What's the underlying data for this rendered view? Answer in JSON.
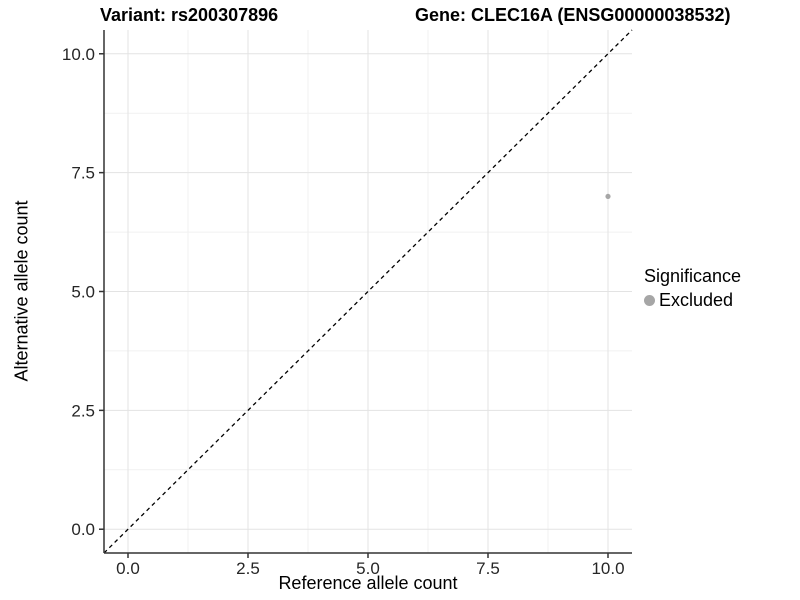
{
  "figure": {
    "title_left": "Variant: rs200307896",
    "title_right": "Gene: CLEC16A (ENSG00000038532)"
  },
  "chart_data": {
    "type": "scatter",
    "title": "Variant: rs200307896   Gene: CLEC16A (ENSG00000038532)",
    "xlabel": "Reference allele count",
    "ylabel": "Alternative allele count",
    "xlim": [
      -0.5,
      10.5
    ],
    "ylim": [
      -0.5,
      10.5
    ],
    "x_ticks": [
      0,
      2.5,
      5,
      7.5,
      10
    ],
    "y_ticks": [
      0,
      2.5,
      5,
      7.5,
      10
    ],
    "x_tick_labels": [
      "0.0",
      "2.5",
      "5.0",
      "7.5",
      "10.0"
    ],
    "y_tick_labels": [
      "0.0",
      "2.5",
      "5.0",
      "7.5",
      "10.0"
    ],
    "x_minor_ticks": [
      1.25,
      3.75,
      6.25,
      8.75
    ],
    "y_minor_ticks": [
      1.25,
      3.75,
      6.25,
      8.75
    ],
    "grid": true,
    "reference_line": {
      "type": "identity",
      "style": "dashed",
      "color": "#000000"
    },
    "series": [
      {
        "name": "Excluded",
        "color": "#a6a6a6",
        "points": [
          {
            "x": 10,
            "y": 7
          }
        ]
      }
    ],
    "legend": {
      "title": "Significance",
      "position": "right",
      "items": [
        {
          "label": "Excluded",
          "color": "#a6a6a6"
        }
      ]
    }
  },
  "style_colors": {
    "axis_line": "#333333",
    "tick_mark": "#333333",
    "tick_label": "#262626",
    "grid_major": "#e3e3e3",
    "grid_minor": "#f1f1f1",
    "point": "#a6a6a6"
  }
}
